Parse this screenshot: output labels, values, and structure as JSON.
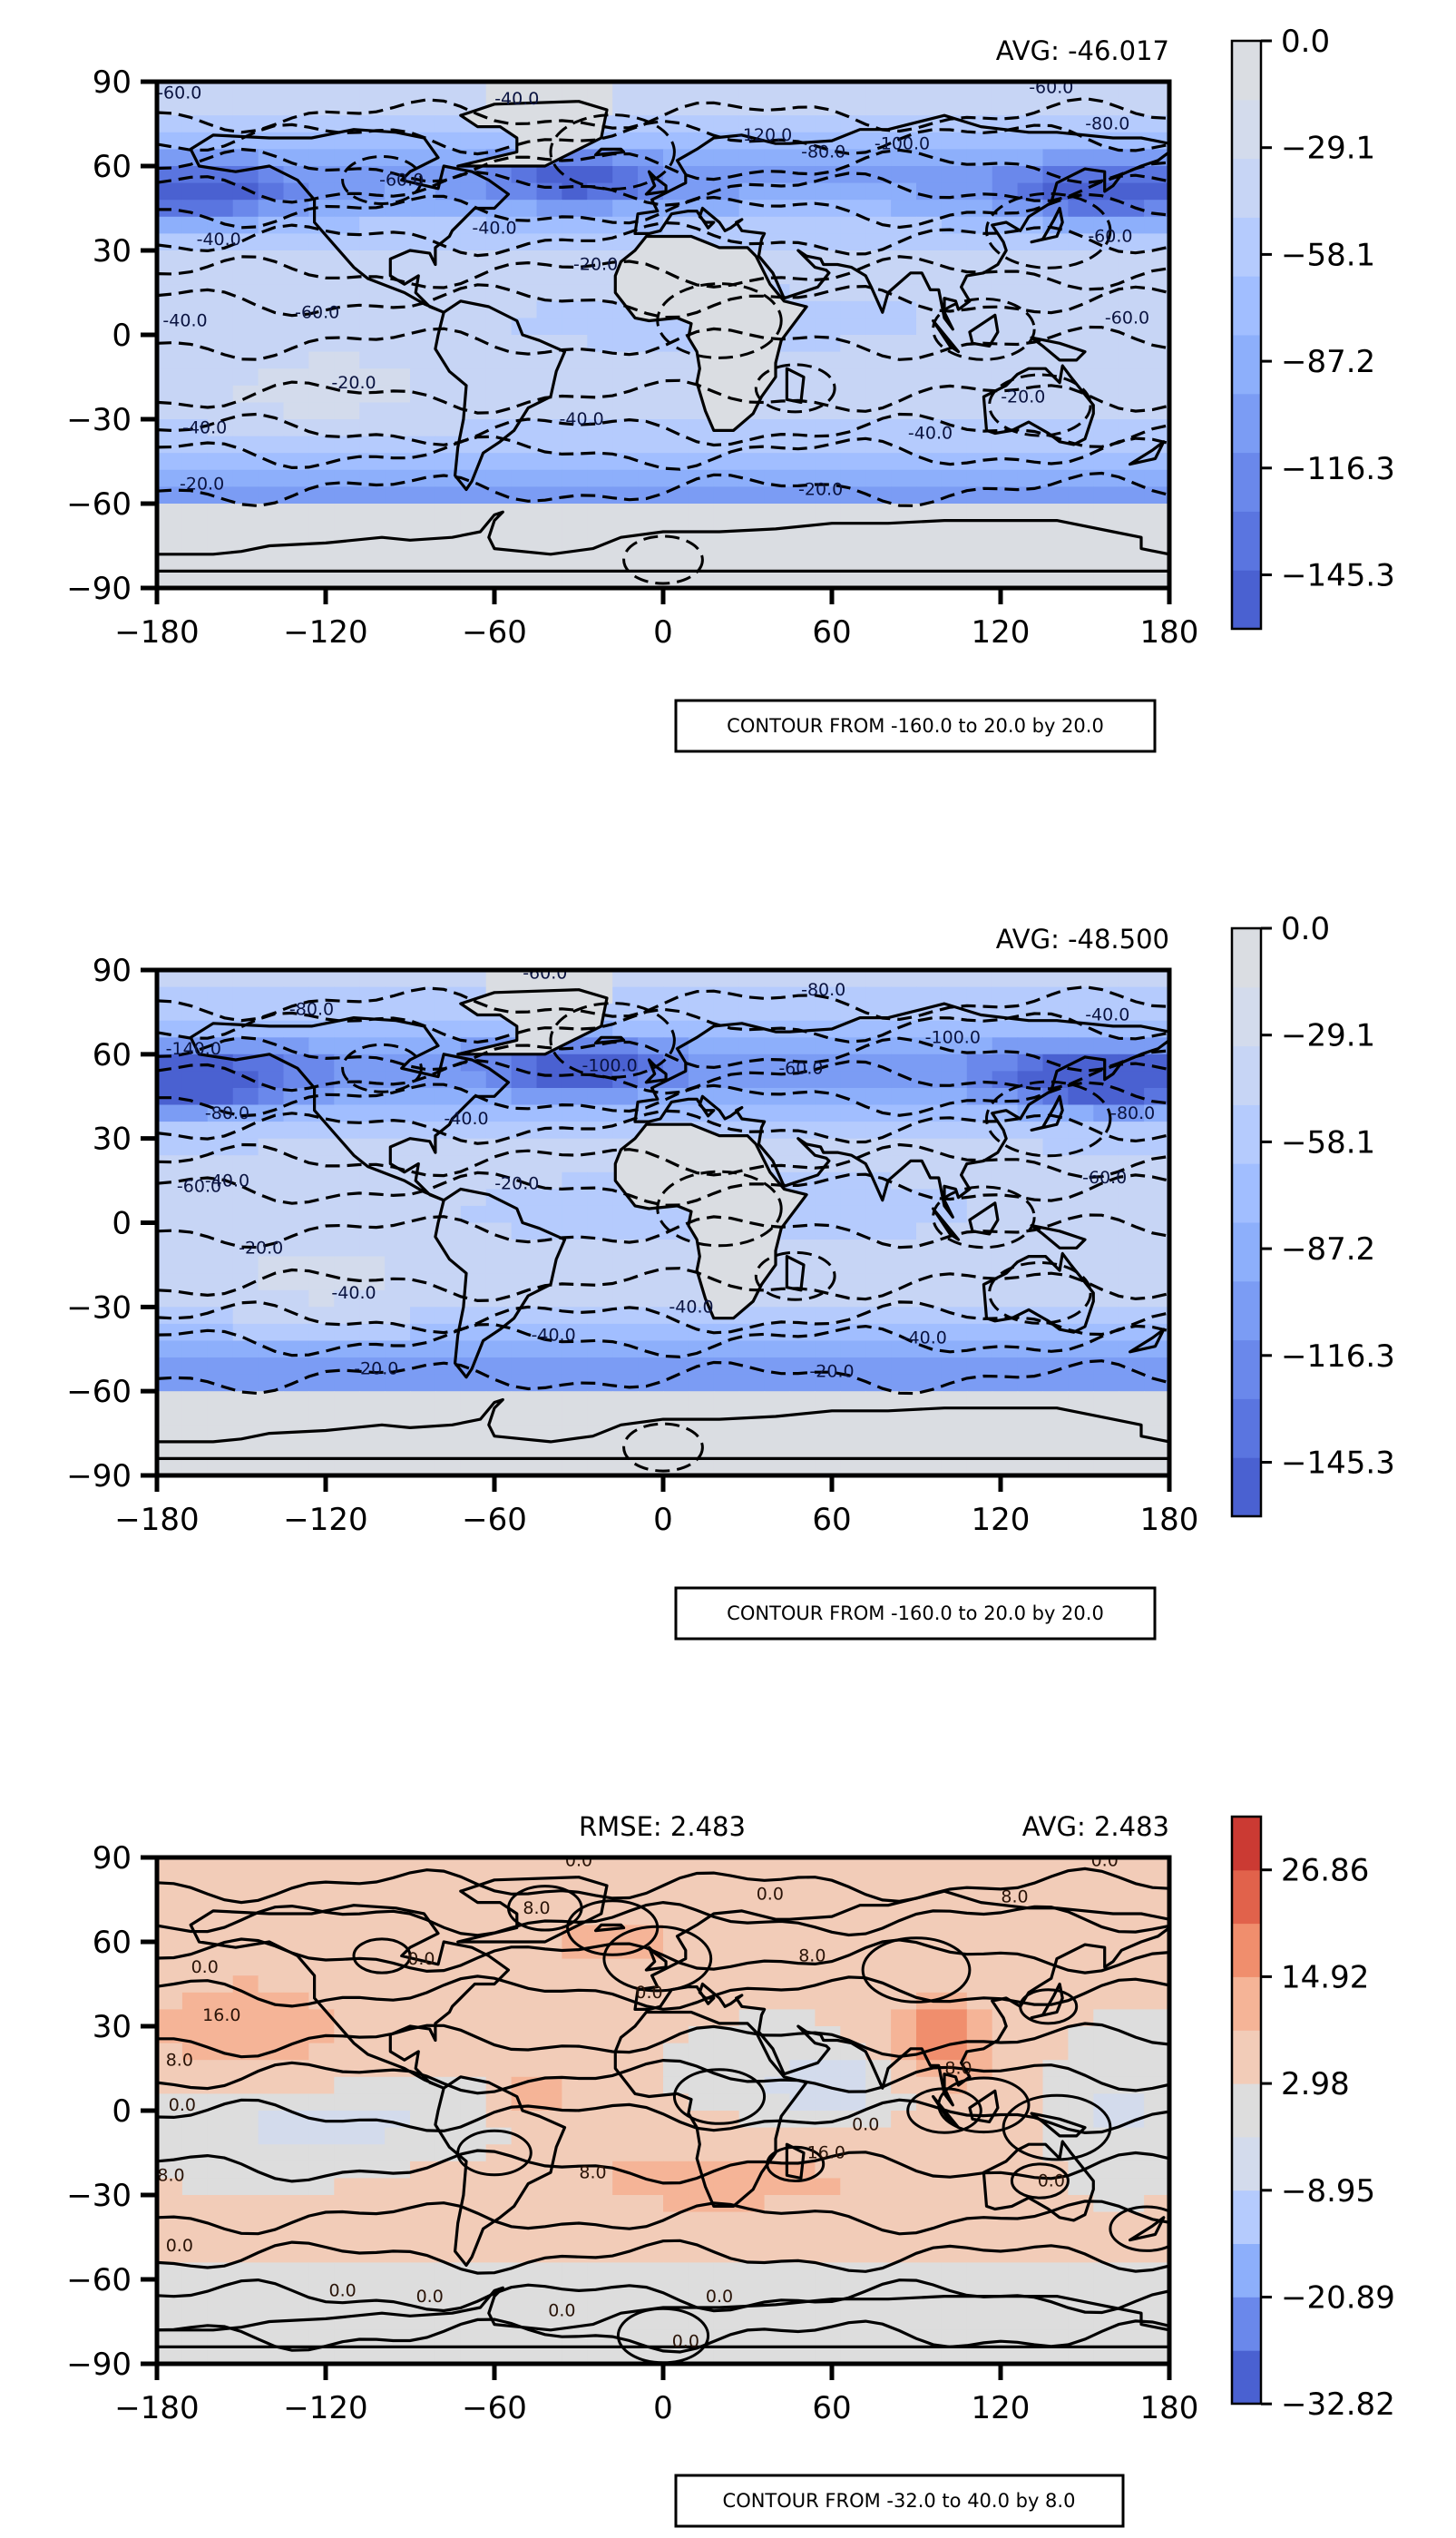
{
  "chart_data": [
    {
      "type": "heatmap",
      "avg_label": "AVG: -46.017",
      "rmse_label": "",
      "contour_label": "CONTOUR FROM -160.0 to 20.0 by 20.0",
      "xlim": [
        -180,
        180
      ],
      "ylim": [
        -90,
        90
      ],
      "xticks": [
        "−180",
        "−120",
        "−60",
        "0",
        "60",
        "120",
        "180"
      ],
      "yticks": [
        "90",
        "60",
        "30",
        "0",
        "−30",
        "−60",
        "−90"
      ],
      "colorbar": {
        "min": -160,
        "max": 0,
        "ticks": [
          "0.0",
          "−29.1",
          "−58.1",
          "−87.2",
          "−116.3",
          "−145.3"
        ],
        "colors": [
          "#4a61d1",
          "#5a75e0",
          "#6a88eb",
          "#7b9cf4",
          "#8daffb",
          "#a1beff",
          "#b5cbfd",
          "#c7d5f5",
          "#d3dbec",
          "#dadde2"
        ]
      },
      "base_color": "#dadde2",
      "contour_style": "dashed",
      "contour_labels": [
        {
          "text": "-60.0",
          "x": -172,
          "y": 84
        },
        {
          "text": "-40.0",
          "x": -52,
          "y": 82
        },
        {
          "text": "-60.0",
          "x": 138,
          "y": 86
        },
        {
          "text": "-80.0",
          "x": 158,
          "y": 73
        },
        {
          "text": "-120.0",
          "x": 36,
          "y": 69
        },
        {
          "text": "-100.0",
          "x": 85,
          "y": 66
        },
        {
          "text": "-80.0",
          "x": 57,
          "y": 63
        },
        {
          "text": "-60.0",
          "x": -93,
          "y": 53
        },
        {
          "text": "-40.0",
          "x": -158,
          "y": 32
        },
        {
          "text": "-40.0",
          "x": -60,
          "y": 36
        },
        {
          "text": "-20.0",
          "x": -24,
          "y": 23
        },
        {
          "text": "-60.0",
          "x": 159,
          "y": 33
        },
        {
          "text": "-40.0",
          "x": -170,
          "y": 3
        },
        {
          "text": "-60.0",
          "x": -123,
          "y": 6
        },
        {
          "text": "-60.0",
          "x": 165,
          "y": 4
        },
        {
          "text": "-20.0",
          "x": -110,
          "y": -19
        },
        {
          "text": "-40.0",
          "x": -29,
          "y": -32
        },
        {
          "text": "-20.0",
          "x": 128,
          "y": -24
        },
        {
          "text": "-40.0",
          "x": -163,
          "y": -35
        },
        {
          "text": "-40.0",
          "x": 95,
          "y": -37
        },
        {
          "text": "-20.0",
          "x": -164,
          "y": -55
        },
        {
          "text": "-20.0",
          "x": 56,
          "y": -57
        }
      ]
    },
    {
      "type": "heatmap",
      "avg_label": "AVG: -48.500",
      "rmse_label": "",
      "contour_label": "CONTOUR FROM -160.0 to 20.0 by 20.0",
      "xlim": [
        -180,
        180
      ],
      "ylim": [
        -90,
        90
      ],
      "xticks": [
        "−180",
        "−120",
        "−60",
        "0",
        "60",
        "120",
        "180"
      ],
      "yticks": [
        "90",
        "60",
        "30",
        "0",
        "−30",
        "−60",
        "−90"
      ],
      "colorbar": {
        "min": -160,
        "max": 0,
        "ticks": [
          "0.0",
          "−29.1",
          "−58.1",
          "−87.2",
          "−116.3",
          "−145.3"
        ],
        "colors": [
          "#4a61d1",
          "#5a75e0",
          "#6a88eb",
          "#7b9cf4",
          "#8daffb",
          "#a1beff",
          "#b5cbfd",
          "#c7d5f5",
          "#d3dbec",
          "#dadde2"
        ]
      },
      "base_color": "#dadde2",
      "contour_style": "dashed",
      "contour_labels": [
        {
          "text": "-60.0",
          "x": -42,
          "y": 87
        },
        {
          "text": "-80.0",
          "x": 57,
          "y": 81
        },
        {
          "text": "-80.0",
          "x": -125,
          "y": 74
        },
        {
          "text": "-40.0",
          "x": 158,
          "y": 72
        },
        {
          "text": "-100.0",
          "x": 103,
          "y": 64
        },
        {
          "text": "-140.0",
          "x": -167,
          "y": 60
        },
        {
          "text": "-60.0",
          "x": 49,
          "y": 53
        },
        {
          "text": "-100.0",
          "x": -19,
          "y": 54
        },
        {
          "text": "-80.0",
          "x": -155,
          "y": 37
        },
        {
          "text": "-80.0",
          "x": 167,
          "y": 37
        },
        {
          "text": "-40.0",
          "x": -70,
          "y": 35
        },
        {
          "text": "-20.0",
          "x": -52,
          "y": 12
        },
        {
          "text": "-60.0",
          "x": -165,
          "y": 11
        },
        {
          "text": "-40.0",
          "x": -155,
          "y": 13
        },
        {
          "text": "-60.0",
          "x": 157,
          "y": 14
        },
        {
          "text": "-20.0",
          "x": -143,
          "y": -11
        },
        {
          "text": "-40.0",
          "x": -110,
          "y": -27
        },
        {
          "text": "-40.0",
          "x": -39,
          "y": -42
        },
        {
          "text": "-40.0",
          "x": 93,
          "y": -43
        },
        {
          "text": "-40.0",
          "x": 10,
          "y": -32
        },
        {
          "text": "-20.0",
          "x": -102,
          "y": -54
        },
        {
          "text": "-20.0",
          "x": 60,
          "y": -55
        }
      ]
    },
    {
      "type": "heatmap",
      "avg_label": "AVG: 2.483",
      "rmse_label": "RMSE: 2.483",
      "contour_label": "CONTOUR FROM -32.0 to 40.0 by 8.0",
      "xlim": [
        -180,
        180
      ],
      "ylim": [
        -90,
        90
      ],
      "xticks": [
        "−180",
        "−120",
        "−60",
        "0",
        "60",
        "120",
        "180"
      ],
      "yticks": [
        "90",
        "60",
        "30",
        "0",
        "−30",
        "−60",
        "−90"
      ],
      "colorbar": {
        "min": -32.82,
        "max": 32.82,
        "ticks": [
          "26.86",
          "14.92",
          "2.98",
          "−8.95",
          "−20.89",
          "−32.82"
        ],
        "colors": [
          "#4a61d1",
          "#6a88eb",
          "#8daffb",
          "#b5cbfd",
          "#d3dbec",
          "#dddddd",
          "#f2ccb8",
          "#f5b497",
          "#f08e6d",
          "#e1624b",
          "#cb3a33"
        ]
      },
      "base_color": "#dddddd",
      "contour_style": "solid",
      "contour_labels": [
        {
          "text": "0.0",
          "x": -30,
          "y": 87
        },
        {
          "text": "0.0",
          "x": 157,
          "y": 87
        },
        {
          "text": "0.0",
          "x": 38,
          "y": 75
        },
        {
          "text": "8.0",
          "x": 125,
          "y": 74
        },
        {
          "text": "8.0",
          "x": -45,
          "y": 70
        },
        {
          "text": "0.0",
          "x": -163,
          "y": 49
        },
        {
          "text": "0.0",
          "x": -86,
          "y": 52
        },
        {
          "text": "8.0",
          "x": 53,
          "y": 53
        },
        {
          "text": "16.0",
          "x": -157,
          "y": 32
        },
        {
          "text": "0.0",
          "x": -5,
          "y": 40
        },
        {
          "text": "8.0",
          "x": -172,
          "y": 16
        },
        {
          "text": "8.0",
          "x": 105,
          "y": 13
        },
        {
          "text": "0.0",
          "x": -171,
          "y": 0
        },
        {
          "text": "0.0",
          "x": 72,
          "y": -7
        },
        {
          "text": "16.0",
          "x": 58,
          "y": -17
        },
        {
          "text": "8.0",
          "x": -25,
          "y": -24
        },
        {
          "text": "8.0",
          "x": -175,
          "y": -25
        },
        {
          "text": "0.0",
          "x": 138,
          "y": -27
        },
        {
          "text": "0.0",
          "x": -172,
          "y": -50
        },
        {
          "text": "0.0",
          "x": -114,
          "y": -66
        },
        {
          "text": "0.0",
          "x": -83,
          "y": -68
        },
        {
          "text": "0.0",
          "x": -36,
          "y": -73
        },
        {
          "text": "0.0",
          "x": 20,
          "y": -68
        },
        {
          "text": "0.0",
          "x": 8,
          "y": -84
        }
      ]
    }
  ]
}
